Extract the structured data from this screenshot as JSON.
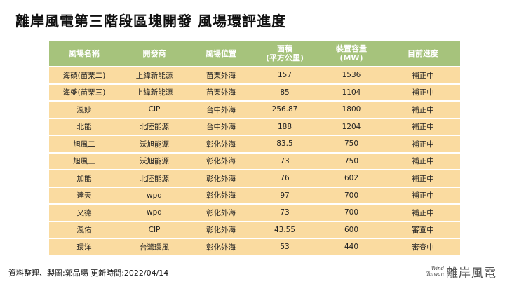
{
  "title": "離岸風電第三階段區塊開發 風場環評進度",
  "table": {
    "headers": [
      "風場名稱",
      "開發商",
      "風場位置",
      "面積\n(平方公里)",
      "裝置容量\n(MW)",
      "目前進度"
    ],
    "rows": [
      [
        "海碩(苗栗二)",
        "上緯新能源",
        "苗栗外海",
        "157",
        "1536",
        "補正中"
      ],
      [
        "海盛(苗栗三)",
        "上緯新能源",
        "苗栗外海",
        "85",
        "1104",
        "補正中"
      ],
      [
        "渢妙",
        "CIP",
        "台中外海",
        "256.87",
        "1800",
        "補正中"
      ],
      [
        "北能",
        "北陸能源",
        "台中外海",
        "188",
        "1204",
        "補正中"
      ],
      [
        "旭風二",
        "沃旭能源",
        "彰化外海",
        "83.5",
        "750",
        "補正中"
      ],
      [
        "旭風三",
        "沃旭能源",
        "彰化外海",
        "73",
        "750",
        "補正中"
      ],
      [
        "加能",
        "北陸能源",
        "彰化外海",
        "76",
        "602",
        "補正中"
      ],
      [
        "達天",
        "wpd",
        "彰化外海",
        "97",
        "700",
        "補正中"
      ],
      [
        "又德",
        "wpd",
        "彰化外海",
        "73",
        "700",
        "補正中"
      ],
      [
        "渢佑",
        "CIP",
        "彰化外海",
        "43.55",
        "600",
        "審查中"
      ],
      [
        "環洋",
        "台灣環風",
        "彰化外海",
        "53",
        "440",
        "審查中"
      ]
    ]
  },
  "footer": "資料整理、製圖:郭品瑒 更新時間:2022/04/14",
  "logo": {
    "mark": "Wind\nTaiwan",
    "text": "離岸風電"
  },
  "colors": {
    "header_bg": "#a6c37c",
    "row_bg": "#fadba0"
  }
}
